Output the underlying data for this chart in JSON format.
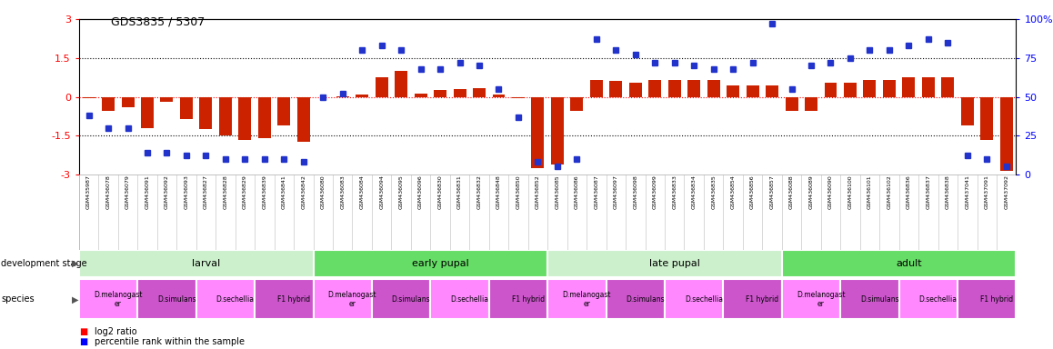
{
  "title": "GDS3835 / 5307",
  "samples": [
    "GSM435987",
    "GSM436078",
    "GSM436079",
    "GSM436091",
    "GSM436092",
    "GSM436093",
    "GSM436827",
    "GSM436828",
    "GSM436829",
    "GSM436839",
    "GSM436841",
    "GSM436842",
    "GSM436080",
    "GSM436083",
    "GSM436084",
    "GSM436094",
    "GSM436095",
    "GSM436096",
    "GSM436830",
    "GSM436831",
    "GSM436832",
    "GSM436848",
    "GSM436850",
    "GSM436852",
    "GSM436085",
    "GSM436086",
    "GSM436087",
    "GSM436097",
    "GSM436098",
    "GSM436099",
    "GSM436833",
    "GSM436834",
    "GSM436835",
    "GSM436854",
    "GSM436856",
    "GSM436857",
    "GSM436088",
    "GSM436089",
    "GSM436090",
    "GSM436100",
    "GSM436101",
    "GSM436102",
    "GSM436836",
    "GSM436837",
    "GSM436838",
    "GSM437041",
    "GSM437091",
    "GSM437092"
  ],
  "log2_ratio": [
    -0.05,
    -0.55,
    -0.4,
    -1.2,
    -0.18,
    -0.85,
    -1.25,
    -1.5,
    -1.65,
    -1.6,
    -1.1,
    -1.75,
    -0.02,
    0.02,
    0.1,
    0.75,
    1.0,
    0.12,
    0.25,
    0.3,
    0.35,
    0.08,
    -0.05,
    -2.75,
    -2.6,
    -0.55,
    0.65,
    0.6,
    0.55,
    0.65,
    0.65,
    0.65,
    0.65,
    0.45,
    0.45,
    0.45,
    -0.55,
    -0.55,
    0.55,
    0.55,
    0.65,
    0.65,
    0.75,
    0.75,
    0.75,
    -1.1,
    -1.65,
    -2.85
  ],
  "percentile": [
    38,
    30,
    30,
    14,
    14,
    12,
    12,
    10,
    10,
    10,
    10,
    8,
    50,
    52,
    80,
    83,
    80,
    68,
    68,
    72,
    70,
    55,
    37,
    8,
    5,
    10,
    87,
    80,
    77,
    72,
    72,
    70,
    68,
    68,
    72,
    97,
    55,
    70,
    72,
    75,
    80,
    80,
    83,
    87,
    85,
    12,
    10,
    5
  ],
  "dev_stages": [
    {
      "label": "larval",
      "start": 0,
      "end": 12,
      "color": "#ccf0cc"
    },
    {
      "label": "early pupal",
      "start": 12,
      "end": 24,
      "color": "#66dd66"
    },
    {
      "label": "late pupal",
      "start": 24,
      "end": 36,
      "color": "#ccf0cc"
    },
    {
      "label": "adult",
      "start": 36,
      "end": 48,
      "color": "#66dd66"
    }
  ],
  "species_groups": [
    {
      "label": "D.melanogast\ner",
      "start": 0,
      "end": 3,
      "color": "#ff88ff"
    },
    {
      "label": "D.simulans",
      "start": 3,
      "end": 6,
      "color": "#cc55cc"
    },
    {
      "label": "D.sechellia",
      "start": 6,
      "end": 9,
      "color": "#ff88ff"
    },
    {
      "label": "F1 hybrid",
      "start": 9,
      "end": 12,
      "color": "#cc55cc"
    },
    {
      "label": "D.melanogast\ner",
      "start": 12,
      "end": 15,
      "color": "#ff88ff"
    },
    {
      "label": "D.simulans",
      "start": 15,
      "end": 18,
      "color": "#cc55cc"
    },
    {
      "label": "D.sechellia",
      "start": 18,
      "end": 21,
      "color": "#ff88ff"
    },
    {
      "label": "F1 hybrid",
      "start": 21,
      "end": 24,
      "color": "#cc55cc"
    },
    {
      "label": "D.melanogast\ner",
      "start": 24,
      "end": 27,
      "color": "#ff88ff"
    },
    {
      "label": "D.simulans",
      "start": 27,
      "end": 30,
      "color": "#cc55cc"
    },
    {
      "label": "D.sechellia",
      "start": 30,
      "end": 33,
      "color": "#ff88ff"
    },
    {
      "label": "F1 hybrid",
      "start": 33,
      "end": 36,
      "color": "#cc55cc"
    },
    {
      "label": "D.melanogast\ner",
      "start": 36,
      "end": 39,
      "color": "#ff88ff"
    },
    {
      "label": "D.simulans",
      "start": 39,
      "end": 42,
      "color": "#cc55cc"
    },
    {
      "label": "D.sechellia",
      "start": 42,
      "end": 45,
      "color": "#ff88ff"
    },
    {
      "label": "F1 hybrid",
      "start": 45,
      "end": 48,
      "color": "#cc55cc"
    }
  ],
  "bar_color": "#cc2200",
  "dot_color": "#2233cc",
  "left_ylim": [
    -3,
    3
  ],
  "right_ylim": [
    0,
    100
  ],
  "left_yticks": [
    -3,
    -1.5,
    0,
    1.5,
    3
  ],
  "right_yticks": [
    0,
    25,
    50,
    75,
    100
  ],
  "hlines": [
    -1.5,
    0,
    1.5
  ]
}
